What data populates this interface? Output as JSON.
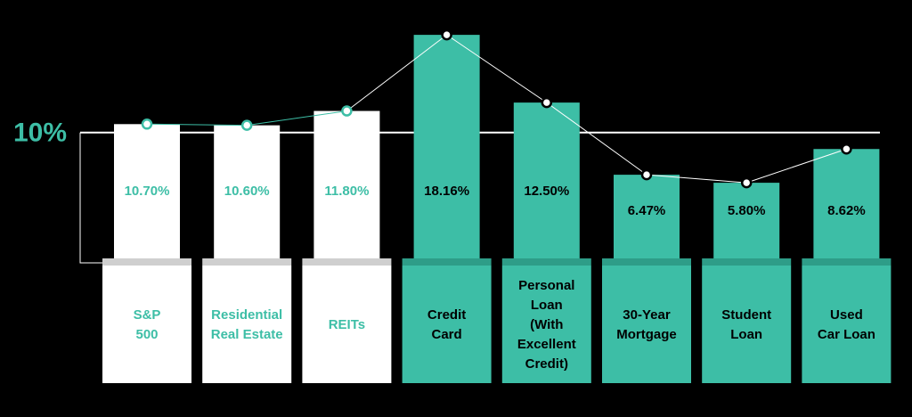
{
  "chart_data": {
    "type": "bar",
    "categories": [
      [
        "S&P",
        "500"
      ],
      [
        "Residential",
        "Real Estate"
      ],
      [
        "REITs"
      ],
      [
        "Credit",
        "Card"
      ],
      [
        "Personal",
        "Loan",
        "(With",
        "Excellent",
        "Credit)"
      ],
      [
        "30-Year",
        "Mortgage"
      ],
      [
        "Student",
        "Loan"
      ],
      [
        "Used",
        "Car Loan"
      ]
    ],
    "values": [
      10.7,
      10.6,
      11.8,
      18.16,
      12.5,
      6.47,
      5.8,
      8.62
    ],
    "value_labels": [
      "10.70%",
      "10.60%",
      "11.80%",
      "18.16%",
      "12.50%",
      "6.47%",
      "5.80%",
      "8.62%"
    ],
    "colors": [
      "#ffffff",
      "#ffffff",
      "#ffffff",
      "#3dbea6",
      "#3dbea6",
      "#3dbea6",
      "#3dbea6",
      "#3dbea6"
    ],
    "text_colors": [
      "#3dbea6",
      "#3dbea6",
      "#3dbea6",
      "#000000",
      "#000000",
      "#000000",
      "#000000",
      "#000000"
    ],
    "reference_line": {
      "value": 10,
      "label": "10%",
      "color": "#3dbea6"
    }
  }
}
